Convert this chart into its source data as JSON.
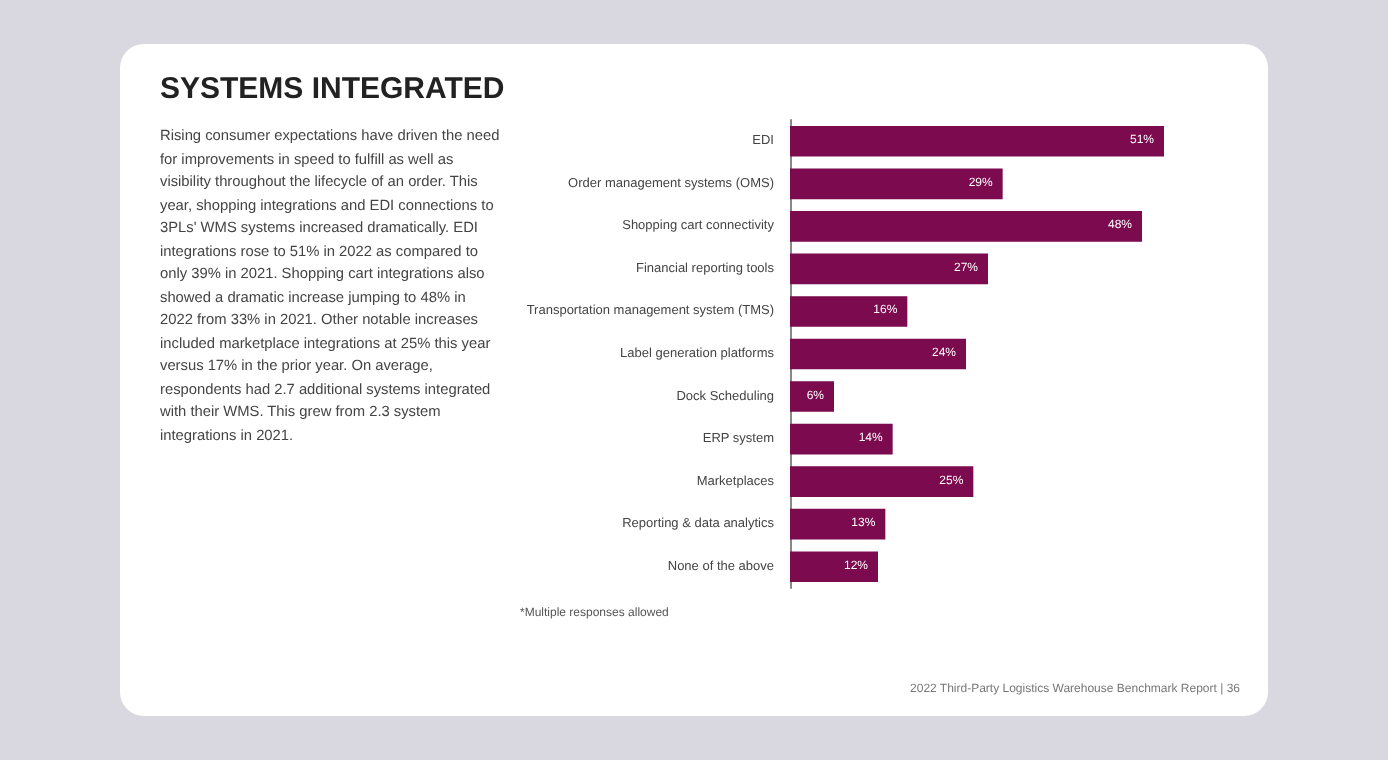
{
  "chart_data": {
    "type": "bar",
    "orientation": "horizontal",
    "title": "SYSTEMS INTEGRATED",
    "subtitle": "Rising consumer expectations have driven the need for improvements in speed to fulfill as well as visibility throughout the lifecycle of an order. This year, shopping integrations and EDI connections to 3PLs' WMS systems increased dramatically. EDI integrations rose to 51% in 2022 as compared to only 39% in 2021. Shopping cart integrations also showed a dramatic increase jumping to 48% in 2022 from 33% in 2021. Other notable increases included marketplace integrations at 25% this year versus 17% in the prior year. On average, respondents had 2.7 additional systems integrated with their WMS. This grew from 2.3 system integrations in 2021.",
    "categories": [
      "EDI",
      "Order management systems (OMS)",
      "Shopping cart connectivity",
      "Financial reporting tools",
      "Transportation management system (TMS)",
      "Label generation platforms",
      "Dock Scheduling",
      "ERP system",
      "Marketplaces",
      "Reporting & data analytics",
      "None of the above"
    ],
    "values": [
      51,
      29,
      48,
      27,
      16,
      24,
      6,
      14,
      25,
      13,
      12
    ],
    "value_labels": [
      "51%",
      "29%",
      "48%",
      "27%",
      "16%",
      "24%",
      "6%",
      "14%",
      "25%",
      "13%",
      "12%"
    ],
    "color": "#7b0a4e",
    "tick_labels": "y",
    "annotations": [
      "*Multiple responses allowed",
      "2022 Third-Party Logistics Warehouse Benchmark Report | 36"
    ]
  }
}
